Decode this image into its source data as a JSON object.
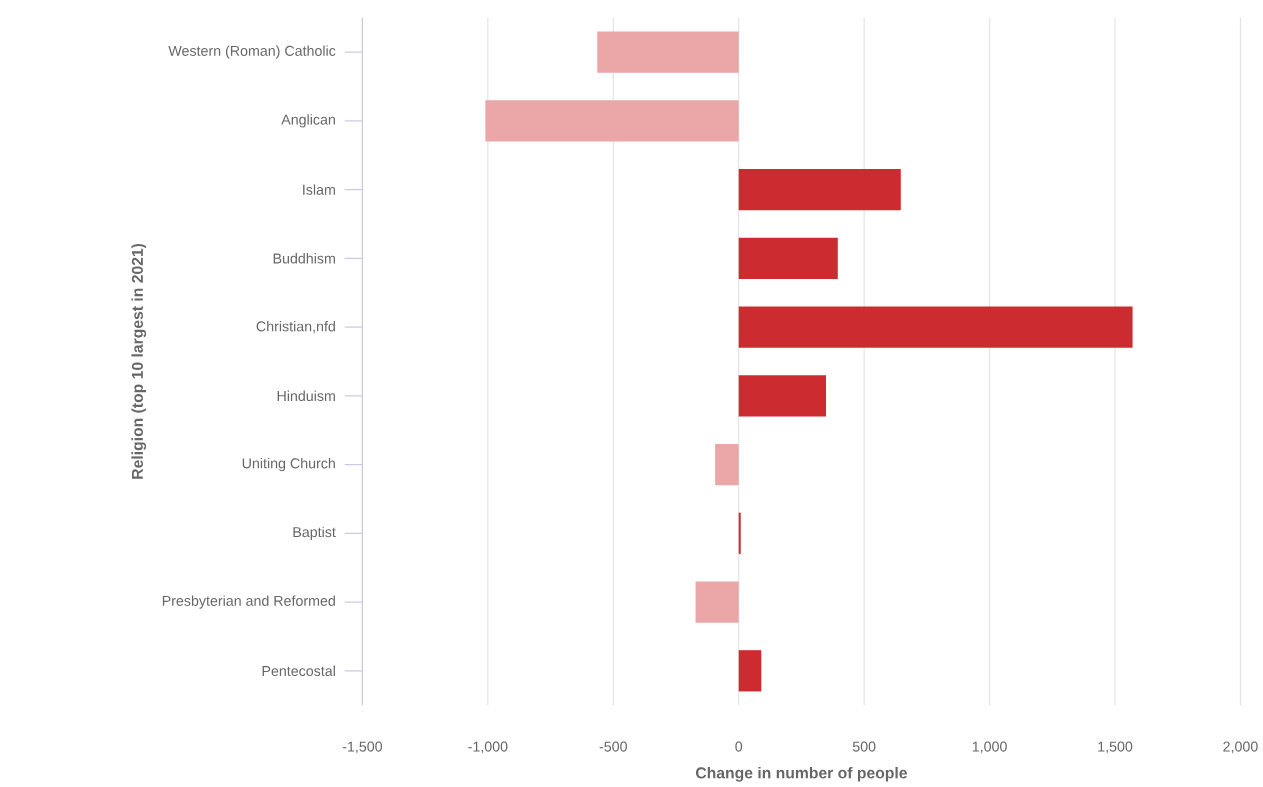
{
  "chart_data": {
    "type": "bar",
    "orientation": "horizontal",
    "xlabel": "Change in number of people",
    "ylabel": "Religion (top 10 largest in 2021)",
    "categories": [
      "Western (Roman) Catholic",
      "Anglican",
      "Islam",
      "Buddhism",
      "Christian,nfd",
      "Hinduism",
      "Uniting Church",
      "Baptist",
      "Presbyterian and Reformed",
      "Pentecostal"
    ],
    "values": [
      -564,
      -1010,
      646,
      395,
      1570,
      348,
      -94,
      8,
      -172,
      90
    ],
    "colors": [
      "#eba6a7",
      "#eba6a7",
      "#cc2c30",
      "#cc2c30",
      "#cc2c30",
      "#cc2c30",
      "#eba6a7",
      "#cc2c30",
      "#eba6a7",
      "#cc2c30"
    ],
    "xlim": [
      -1500,
      2000
    ],
    "xticks": [
      {
        "value": -1500,
        "label": "-1,500"
      },
      {
        "value": -1000,
        "label": "-1,000"
      },
      {
        "value": -500,
        "label": "-500"
      },
      0,
      500,
      {
        "value": 1000,
        "label": "1,000"
      },
      {
        "value": 1500,
        "label": "1,500"
      },
      {
        "value": 2000,
        "label": "2,000"
      }
    ],
    "grid": "x"
  }
}
